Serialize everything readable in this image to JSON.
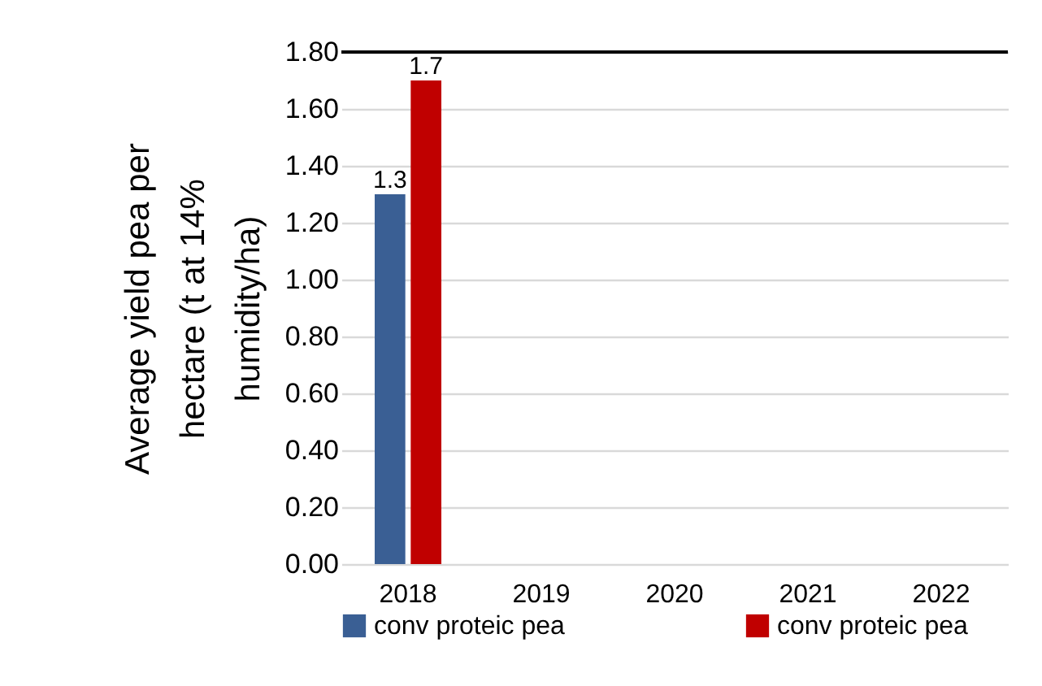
{
  "chart_data": {
    "type": "bar",
    "ylabel": "Average yield pea per hectare (t at 14% humidity/ha)",
    "categories": [
      "2018",
      "2019",
      "2020",
      "2021",
      "2022"
    ],
    "series": [
      {
        "name": "conv proteic pea",
        "color": "#3a5f94",
        "values": [
          1.3,
          null,
          null,
          null,
          null
        ]
      },
      {
        "name": "conv proteic pea",
        "color": "#c00000",
        "values": [
          1.7,
          null,
          null,
          null,
          null
        ]
      }
    ],
    "ylim": [
      0,
      1.8
    ],
    "yticks": [
      {
        "value": 0,
        "label": "0.00"
      },
      {
        "value": 0.2,
        "label": "0.20"
      },
      {
        "value": 0.4,
        "label": "0.40"
      },
      {
        "value": 0.6,
        "label": "0.60"
      },
      {
        "value": 0.8,
        "label": "0.80"
      },
      {
        "value": 1,
        "label": "1.00"
      },
      {
        "value": 1.2,
        "label": "1.20"
      },
      {
        "value": 1.4,
        "label": "1.40"
      },
      {
        "value": 1.6,
        "label": "1.60"
      },
      {
        "value": 1.8,
        "label": "1.80"
      }
    ],
    "ref_lines": [
      {
        "axis": "y",
        "value": 1.8,
        "color": "#000000"
      }
    ],
    "grid": "y",
    "data_labels": true,
    "legend": "bottom"
  }
}
